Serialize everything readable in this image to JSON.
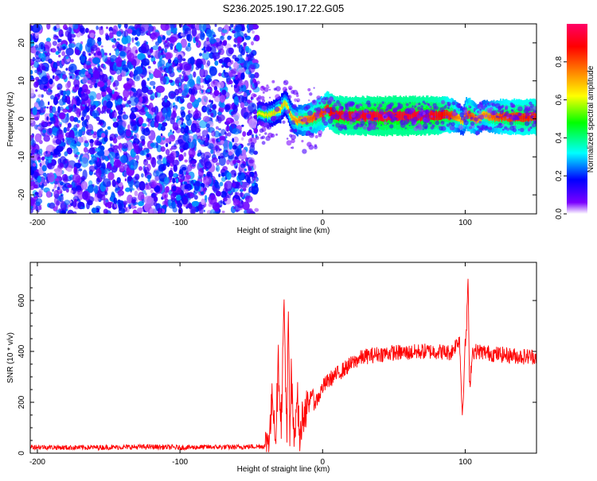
{
  "title": "S236.2025.190.17.22.G05",
  "chart_data": [
    {
      "type": "heatmap",
      "title": "S236.2025.190.17.22.G05",
      "xlabel": "Height of straight line (km)",
      "ylabel": "Frequency (Hz)",
      "xlim": [
        -205,
        150
      ],
      "ylim": [
        -25,
        25
      ],
      "xticks": [
        -200,
        -100,
        0,
        100
      ],
      "yticks": [
        -20,
        -10,
        0,
        10,
        20
      ],
      "colorbar": {
        "label": "Normalized spectral amplitude",
        "range": [
          0,
          1
        ],
        "ticks": [
          0.0,
          0.2,
          0.4,
          0.6,
          0.8
        ],
        "colormap": [
          "#ffffff",
          "#7a00ff",
          "#0000ff",
          "#00ffff",
          "#00ff00",
          "#ffff00",
          "#ff8000",
          "#ff0000",
          "#ff0066"
        ]
      },
      "regions": [
        {
          "x": [
            -205,
            -46
          ],
          "description_values": {
            "frequency_range": [
              -25,
              25
            ],
            "amplitude_range": [
              0.0,
              0.2
            ]
          }
        },
        {
          "x": [
            -46,
            150
          ],
          "description_values": {
            "frequency_center": 0.8,
            "amplitude_peak": 0.95
          }
        }
      ],
      "ridge": {
        "x": [
          -46,
          -40,
          -35,
          -30,
          -27,
          -25,
          -22,
          -18,
          -12,
          -6,
          0,
          3,
          6,
          10,
          20,
          40,
          60,
          80,
          90,
          95,
          98,
          100,
          103,
          108,
          112,
          118,
          125,
          140,
          150
        ],
        "y": [
          1.5,
          0.8,
          1.5,
          2.5,
          4.5,
          3.0,
          0.5,
          -0.5,
          -0.3,
          0.5,
          1.5,
          2.5,
          1.8,
          1.0,
          0.8,
          0.8,
          0.8,
          0.9,
          1.0,
          0.5,
          -1.0,
          1.5,
          1.0,
          -0.5,
          1.0,
          0.5,
          0.6,
          0.5,
          0.5
        ],
        "amplitude": [
          0.25,
          0.3,
          0.35,
          0.4,
          0.35,
          0.4,
          0.45,
          0.5,
          0.6,
          0.65,
          0.7,
          0.75,
          0.8,
          0.85,
          0.85,
          0.9,
          0.9,
          0.85,
          0.7,
          0.5,
          0.45,
          0.6,
          0.7,
          0.55,
          0.5,
          0.6,
          0.7,
          0.75,
          0.75
        ]
      }
    },
    {
      "type": "line",
      "xlabel": "Height of straight line (km)",
      "ylabel": "SNR (10 * v/v)",
      "xlim": [
        -205,
        150
      ],
      "ylim": [
        0,
        750
      ],
      "xticks": [
        -200,
        -100,
        0,
        100
      ],
      "yticks": [
        0,
        200,
        400,
        600
      ],
      "series": [
        {
          "color": "#ff0000",
          "x": [
            -205,
            -180,
            -150,
            -120,
            -100,
            -80,
            -60,
            -40,
            -37,
            -35,
            -33,
            -31,
            -29,
            -27,
            -25,
            -24,
            -23,
            -22,
            -20,
            -18,
            -16,
            -14,
            -12,
            -10,
            -8,
            -6,
            -4,
            -2,
            0,
            5,
            10,
            15,
            20,
            25,
            30,
            40,
            50,
            60,
            70,
            80,
            90,
            96,
            98,
            100,
            101,
            102,
            103,
            105,
            110,
            120,
            130,
            140,
            150
          ],
          "values": [
            25,
            22,
            23,
            25,
            22,
            24,
            24,
            28,
            80,
            240,
            60,
            350,
            120,
            590,
            40,
            560,
            60,
            300,
            40,
            250,
            60,
            150,
            180,
            160,
            250,
            200,
            210,
            230,
            260,
            290,
            310,
            330,
            350,
            370,
            380,
            390,
            395,
            395,
            400,
            400,
            395,
            450,
            150,
            420,
            500,
            700,
            250,
            400,
            400,
            390,
            385,
            380,
            380
          ],
          "noise": 20
        }
      ]
    }
  ]
}
